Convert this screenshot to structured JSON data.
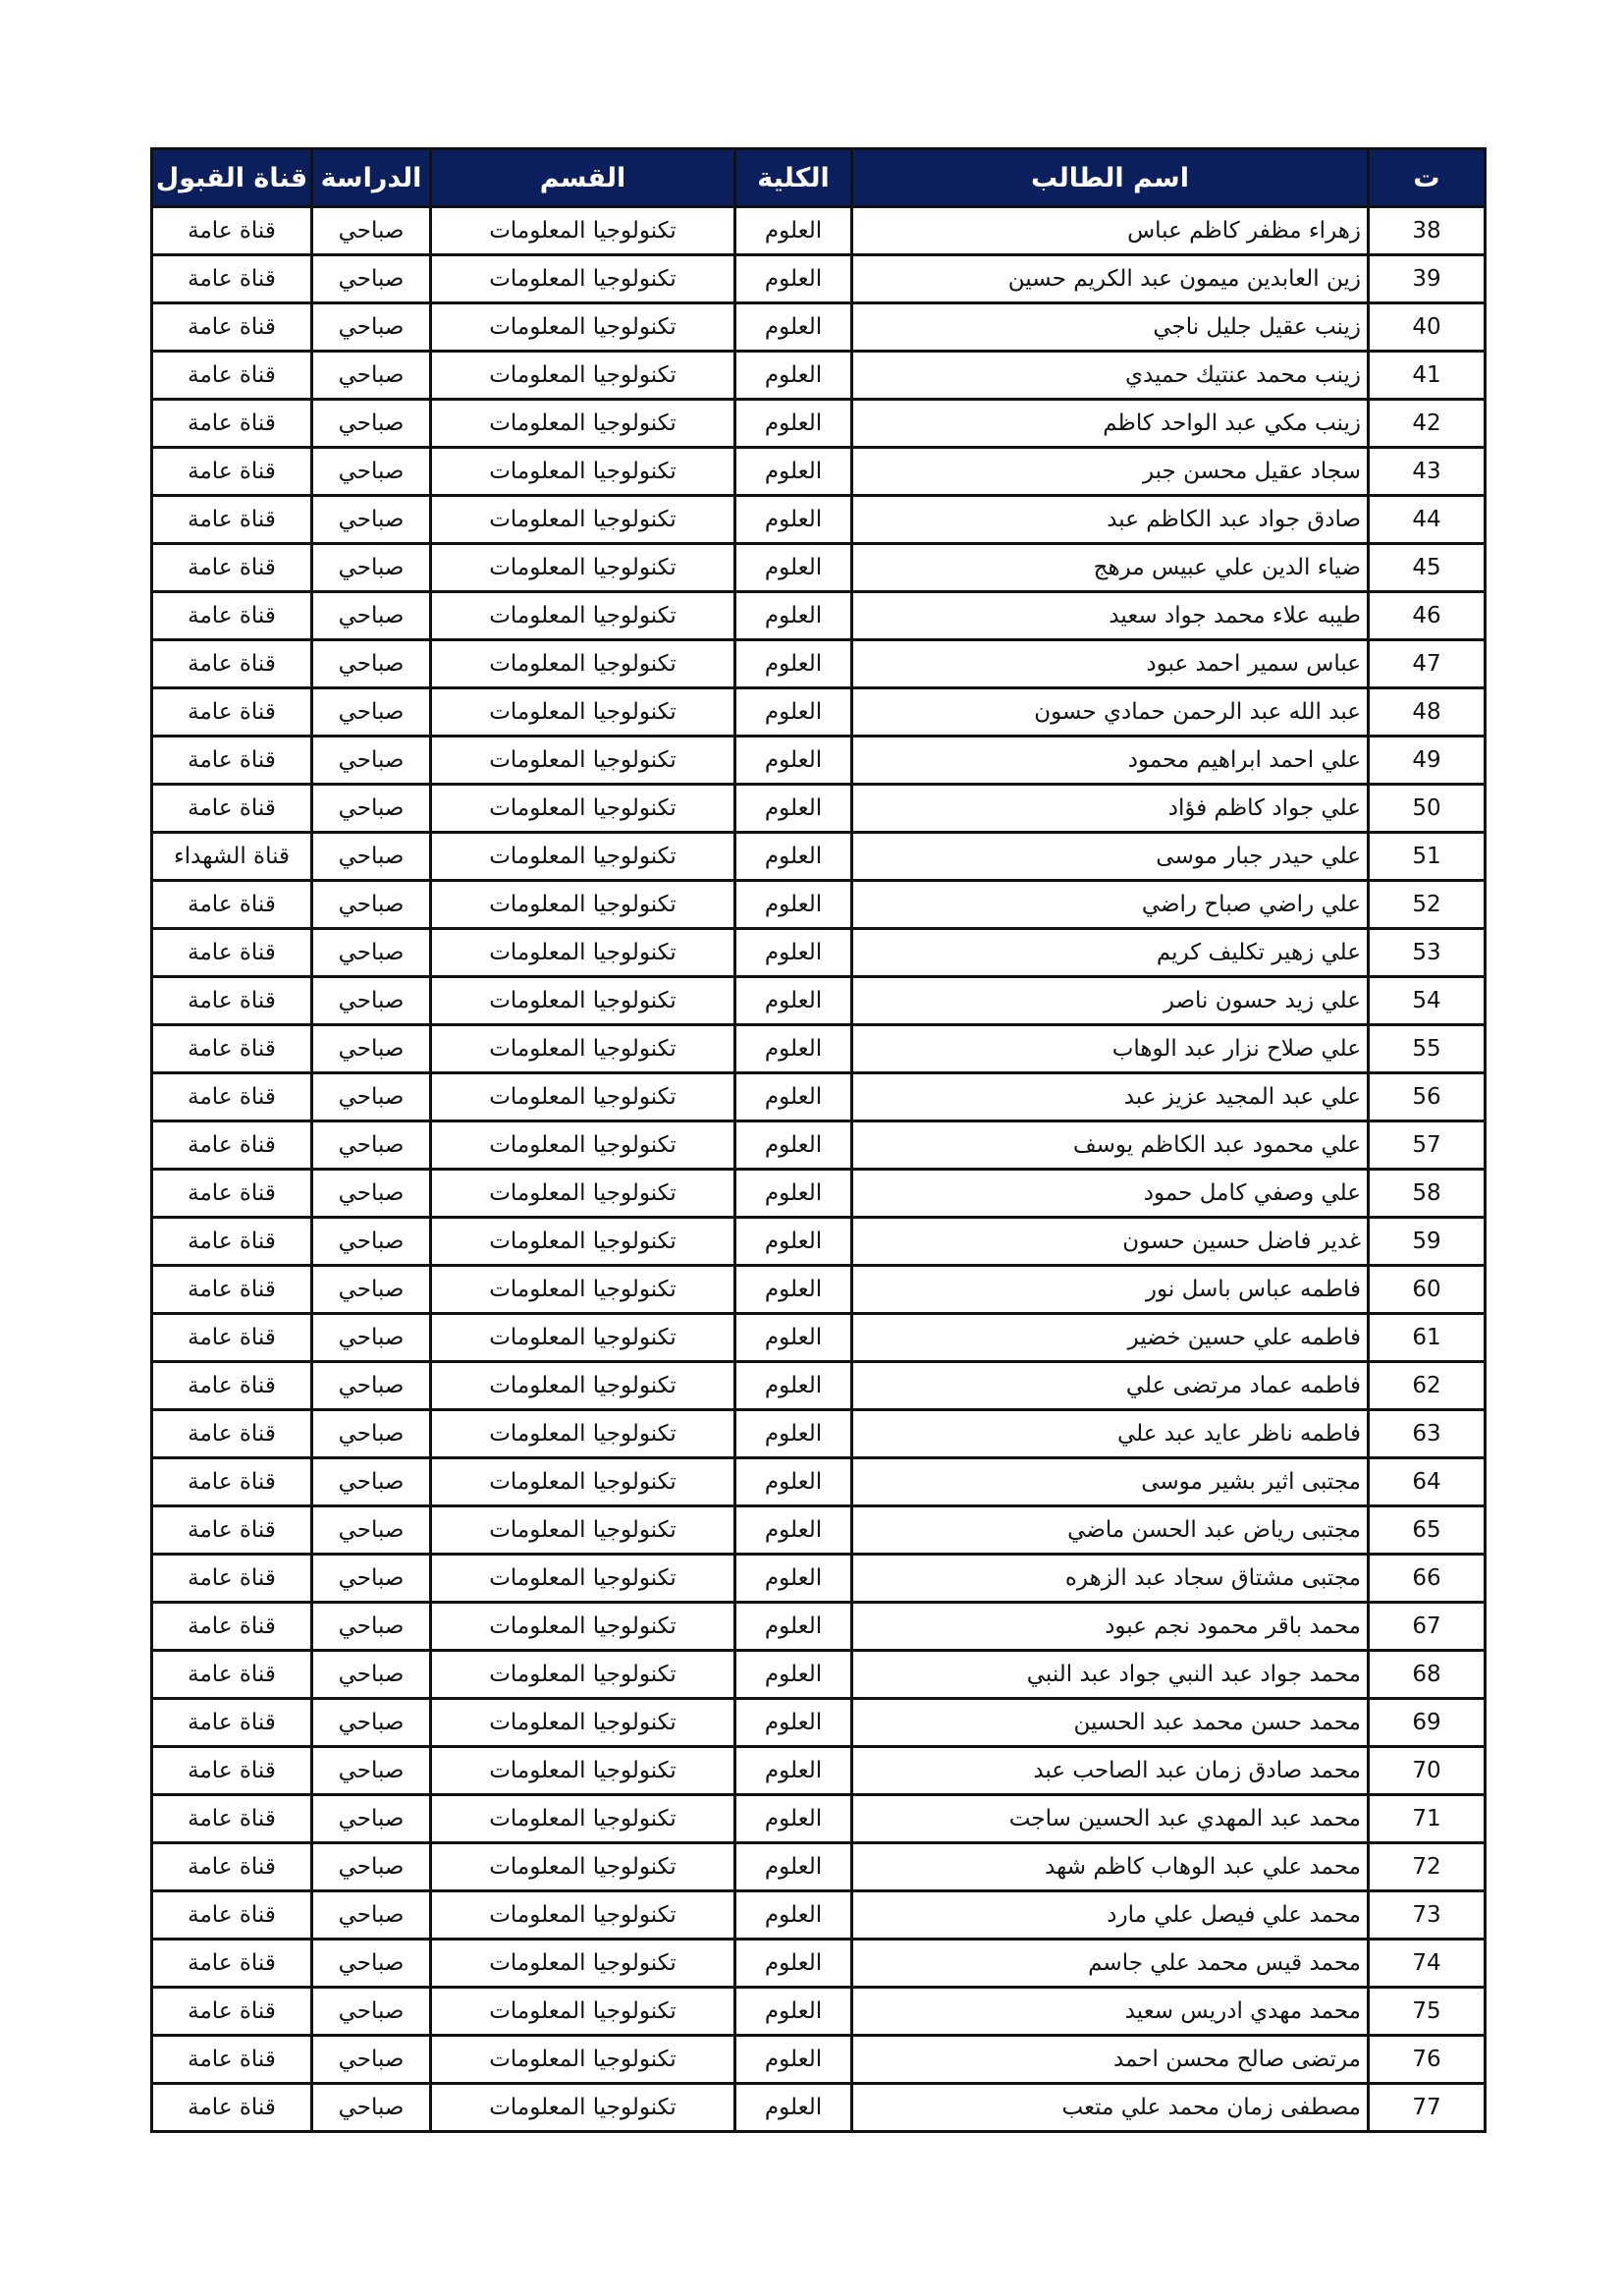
{
  "header_color": "#0b1f5c",
  "columns": [
    "ت",
    "اسم الطالب",
    "الكلية",
    "القسم",
    "الدراسة",
    "قناة القبول"
  ],
  "rows": [
    [
      "38",
      "زهراء مظفر كاظم عباس",
      "العلوم",
      "تكنولوجيا المعلومات",
      "صباحي",
      "قناة عامة"
    ],
    [
      "39",
      "زين العابدين ميمون عبد الكريم حسين",
      "العلوم",
      "تكنولوجيا المعلومات",
      "صباحي",
      "قناة عامة"
    ],
    [
      "40",
      "زينب عقيل جليل ناجي",
      "العلوم",
      "تكنولوجيا المعلومات",
      "صباحي",
      "قناة عامة"
    ],
    [
      "41",
      "زينب محمد عنتيك حميدي",
      "العلوم",
      "تكنولوجيا المعلومات",
      "صباحي",
      "قناة عامة"
    ],
    [
      "42",
      "زينب مكي عبد الواحد كاظم",
      "العلوم",
      "تكنولوجيا المعلومات",
      "صباحي",
      "قناة عامة"
    ],
    [
      "43",
      "سجاد عقيل محسن جبر",
      "العلوم",
      "تكنولوجيا المعلومات",
      "صباحي",
      "قناة عامة"
    ],
    [
      "44",
      "صادق جواد عبد الكاظم عبد",
      "العلوم",
      "تكنولوجيا المعلومات",
      "صباحي",
      "قناة عامة"
    ],
    [
      "45",
      "ضياء الدين علي عبيس مرهج",
      "العلوم",
      "تكنولوجيا المعلومات",
      "صباحي",
      "قناة عامة"
    ],
    [
      "46",
      "طيبه علاء محمد جواد سعيد",
      "العلوم",
      "تكنولوجيا المعلومات",
      "صباحي",
      "قناة عامة"
    ],
    [
      "47",
      "عباس سمير احمد عبود",
      "العلوم",
      "تكنولوجيا المعلومات",
      "صباحي",
      "قناة عامة"
    ],
    [
      "48",
      "عبد الله عبد الرحمن حمادي حسون",
      "العلوم",
      "تكنولوجيا المعلومات",
      "صباحي",
      "قناة عامة"
    ],
    [
      "49",
      "علي احمد ابراهيم محمود",
      "العلوم",
      "تكنولوجيا المعلومات",
      "صباحي",
      "قناة عامة"
    ],
    [
      "50",
      "علي جواد كاظم فؤاد",
      "العلوم",
      "تكنولوجيا المعلومات",
      "صباحي",
      "قناة عامة"
    ],
    [
      "51",
      "علي حيدر جبار موسى",
      "العلوم",
      "تكنولوجيا المعلومات",
      "صباحي",
      "قناة الشهداء"
    ],
    [
      "52",
      "علي راضي صباح راضي",
      "العلوم",
      "تكنولوجيا المعلومات",
      "صباحي",
      "قناة عامة"
    ],
    [
      "53",
      "علي زهير تكليف كريم",
      "العلوم",
      "تكنولوجيا المعلومات",
      "صباحي",
      "قناة عامة"
    ],
    [
      "54",
      "علي زيد حسون ناصر",
      "العلوم",
      "تكنولوجيا المعلومات",
      "صباحي",
      "قناة عامة"
    ],
    [
      "55",
      "علي صلاح نزار عبد الوهاب",
      "العلوم",
      "تكنولوجيا المعلومات",
      "صباحي",
      "قناة عامة"
    ],
    [
      "56",
      "علي عبد المجيد عزيز عبد",
      "العلوم",
      "تكنولوجيا المعلومات",
      "صباحي",
      "قناة عامة"
    ],
    [
      "57",
      "علي محمود عبد الكاظم يوسف",
      "العلوم",
      "تكنولوجيا المعلومات",
      "صباحي",
      "قناة عامة"
    ],
    [
      "58",
      "علي وصفي كامل حمود",
      "العلوم",
      "تكنولوجيا المعلومات",
      "صباحي",
      "قناة عامة"
    ],
    [
      "59",
      "غدير فاضل حسين حسون",
      "العلوم",
      "تكنولوجيا المعلومات",
      "صباحي",
      "قناة عامة"
    ],
    [
      "60",
      "فاطمه عباس باسل نور",
      "العلوم",
      "تكنولوجيا المعلومات",
      "صباحي",
      "قناة عامة"
    ],
    [
      "61",
      "فاطمه علي حسين خضير",
      "العلوم",
      "تكنولوجيا المعلومات",
      "صباحي",
      "قناة عامة"
    ],
    [
      "62",
      "فاطمه عماد مرتضى علي",
      "العلوم",
      "تكنولوجيا المعلومات",
      "صباحي",
      "قناة عامة"
    ],
    [
      "63",
      "فاطمه ناظر عايد عبد علي",
      "العلوم",
      "تكنولوجيا المعلومات",
      "صباحي",
      "قناة عامة"
    ],
    [
      "64",
      "مجتبى اثير بشير موسى",
      "العلوم",
      "تكنولوجيا المعلومات",
      "صباحي",
      "قناة عامة"
    ],
    [
      "65",
      "مجتبى رياض عبد الحسن ماضي",
      "العلوم",
      "تكنولوجيا المعلومات",
      "صباحي",
      "قناة عامة"
    ],
    [
      "66",
      "مجتبى مشتاق سجاد عبد الزهره",
      "العلوم",
      "تكنولوجيا المعلومات",
      "صباحي",
      "قناة عامة"
    ],
    [
      "67",
      "محمد باقر محمود نجم عبود",
      "العلوم",
      "تكنولوجيا المعلومات",
      "صباحي",
      "قناة عامة"
    ],
    [
      "68",
      "محمد جواد عبد النبي جواد عبد النبي",
      "العلوم",
      "تكنولوجيا المعلومات",
      "صباحي",
      "قناة عامة"
    ],
    [
      "69",
      "محمد حسن محمد عبد الحسين",
      "العلوم",
      "تكنولوجيا المعلومات",
      "صباحي",
      "قناة عامة"
    ],
    [
      "70",
      "محمد صادق زمان عبد الصاحب عبد",
      "العلوم",
      "تكنولوجيا المعلومات",
      "صباحي",
      "قناة عامة"
    ],
    [
      "71",
      "محمد عبد المهدي عبد الحسين ساجت",
      "العلوم",
      "تكنولوجيا المعلومات",
      "صباحي",
      "قناة عامة"
    ],
    [
      "72",
      "محمد علي عبد الوهاب كاظم شهد",
      "العلوم",
      "تكنولوجيا المعلومات",
      "صباحي",
      "قناة عامة"
    ],
    [
      "73",
      "محمد علي فيصل علي مارد",
      "العلوم",
      "تكنولوجيا المعلومات",
      "صباحي",
      "قناة عامة"
    ],
    [
      "74",
      "محمد قيس محمد علي جاسم",
      "العلوم",
      "تكنولوجيا المعلومات",
      "صباحي",
      "قناة عامة"
    ],
    [
      "75",
      "محمد مهدي ادريس سعيد",
      "العلوم",
      "تكنولوجيا المعلومات",
      "صباحي",
      "قناة عامة"
    ],
    [
      "76",
      "مرتضى صالح محسن احمد",
      "العلوم",
      "تكنولوجيا المعلومات",
      "صباحي",
      "قناة عامة"
    ],
    [
      "77",
      "مصطفى زمان محمد علي متعب",
      "العلوم",
      "تكنولوجيا المعلومات",
      "صباحي",
      "قناة عامة"
    ]
  ]
}
